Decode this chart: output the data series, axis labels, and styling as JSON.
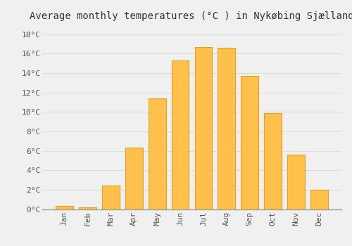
{
  "title": "Average monthly temperatures (°C ) in Nykøbing Sjælland",
  "months": [
    "Jan",
    "Feb",
    "Mar",
    "Apr",
    "May",
    "Jun",
    "Jul",
    "Aug",
    "Sep",
    "Oct",
    "Nov",
    "Dec"
  ],
  "values": [
    0.3,
    0.2,
    2.4,
    6.3,
    11.4,
    15.3,
    16.7,
    16.6,
    13.7,
    9.9,
    5.6,
    2.0
  ],
  "bar_color": "#FFC04C",
  "bar_edge_color": "#E8A020",
  "ytick_labels": [
    "0°C",
    "2°C",
    "4°C",
    "6°C",
    "8°C",
    "10°C",
    "12°C",
    "14°C",
    "16°C",
    "18°C"
  ],
  "ytick_values": [
    0,
    2,
    4,
    6,
    8,
    10,
    12,
    14,
    16,
    18
  ],
  "ylim": [
    0,
    19.0
  ],
  "grid_color": "#dddddd",
  "bg_color": "#f0f0f0",
  "title_fontsize": 10,
  "tick_fontsize": 8,
  "font_family": "monospace"
}
